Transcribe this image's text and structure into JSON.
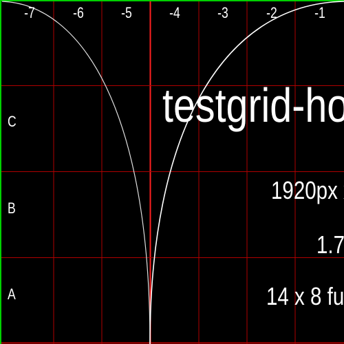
{
  "colors": {
    "background": "#000000",
    "grid_line": "#b00000",
    "center_line": "#ff2020",
    "border_top": "#00d000",
    "border_left": "#00d000",
    "text": "#ffffff"
  },
  "column_labels": [
    "-7",
    "-6",
    "-5",
    "-4",
    "-3",
    "-2",
    "-1"
  ],
  "row_labels": [
    "C",
    "B",
    "A"
  ],
  "title": "testgrid-ho",
  "info": {
    "resolution": "1920px x",
    "ratio": "1.7",
    "tiles": "14 x 8 ful"
  }
}
